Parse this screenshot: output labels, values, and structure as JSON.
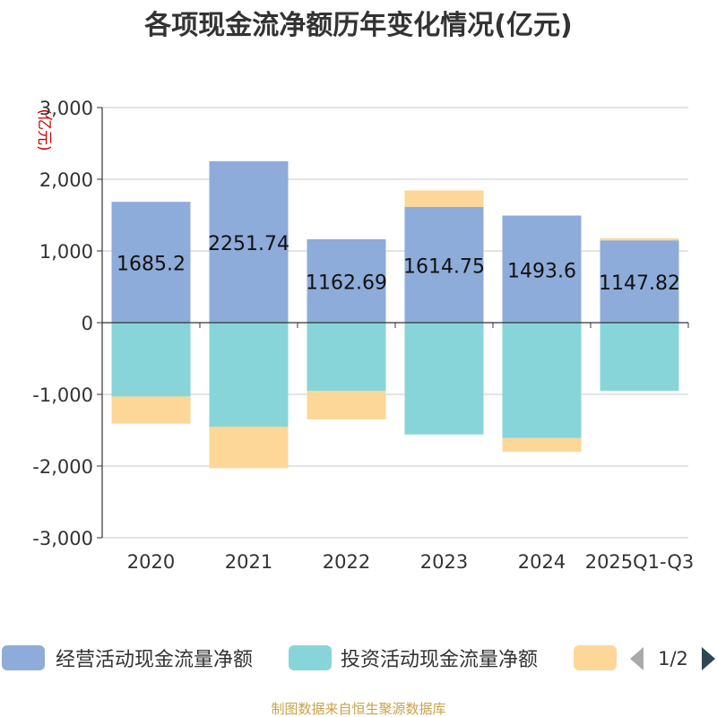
{
  "chart_data": {
    "type": "bar",
    "stacked": true,
    "title": "各项现金流净额历年变化情况(亿元)",
    "ylabel": "(亿元)",
    "xlabel": "",
    "ylim": [
      -3000,
      3000
    ],
    "yticks": [
      3000,
      2000,
      1000,
      0,
      -1000,
      -2000,
      -3000
    ],
    "ytick_labels": [
      "3,000",
      "2,000",
      "1,000",
      "0",
      "-1,000",
      "-2,000",
      "-3,000"
    ],
    "grid": true,
    "categories": [
      "2020",
      "2021",
      "2022",
      "2023",
      "2024",
      "2025Q1-Q3"
    ],
    "series": [
      {
        "name": "经营活动现金流量净额",
        "color": "#8eacd9",
        "values": [
          1685.2,
          2251.74,
          1162.69,
          1614.75,
          1493.6,
          1147.82
        ],
        "labels": [
          "1685.2",
          "2251.74",
          "1162.69",
          "1614.75",
          "1493.6",
          "1147.82"
        ]
      },
      {
        "name": "投资活动现金流量净额",
        "color": "#88d5d9",
        "values": [
          -1030,
          -1450,
          -950,
          -1560,
          -1610,
          -950
        ]
      },
      {
        "name": "",
        "color": "#fdd797",
        "values": [
          -380,
          -580,
          -400,
          230,
          -190,
          30
        ]
      }
    ],
    "legend": {
      "position": "bottom",
      "page": "1/2"
    },
    "source": "制图数据来自恒生聚源数据库"
  }
}
